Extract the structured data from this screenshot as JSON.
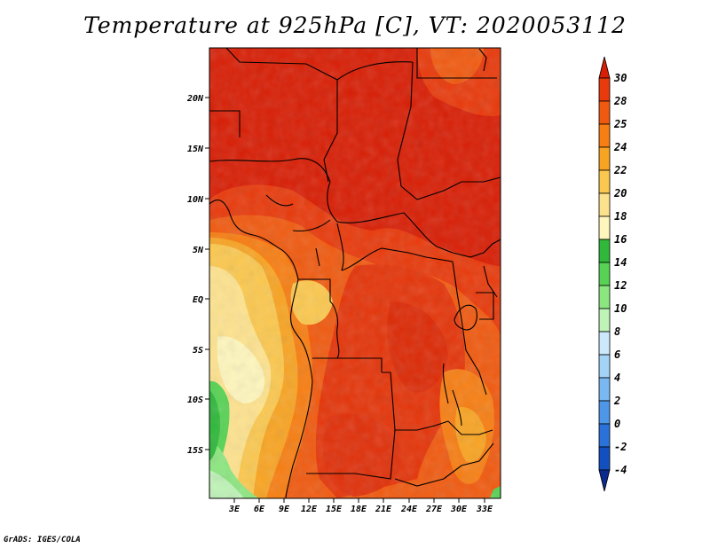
{
  "title": "Temperature at 925hPa [C], VT: 2020053112",
  "footer": "GrADS: IGES/COLA",
  "map": {
    "lon_labels": [
      "3E",
      "6E",
      "9E",
      "12E",
      "15E",
      "18E",
      "21E",
      "24E",
      "27E",
      "30E",
      "33E"
    ],
    "lat_labels": [
      "20N",
      "15N",
      "10N",
      "5N",
      "EQ",
      "5S",
      "10S",
      "15S"
    ]
  },
  "colorbar": {
    "labels": [
      "30",
      "28",
      "25",
      "24",
      "22",
      "20",
      "18",
      "16",
      "14",
      "12",
      "10",
      "8",
      "6",
      "4",
      "2",
      "0",
      "-2",
      "-4"
    ],
    "colors": [
      "#d81e05",
      "#e83a0c",
      "#f05a10",
      "#f77e13",
      "#f8a423",
      "#fbc84f",
      "#fde28e",
      "#fef6bd",
      "#2fb83a",
      "#57d254",
      "#8ce680",
      "#bff3b7",
      "#cce9fc",
      "#a4d3f8",
      "#7ab8f2",
      "#4d96e8",
      "#2a72d9",
      "#1350bf",
      "#0a2a8e"
    ]
  }
}
